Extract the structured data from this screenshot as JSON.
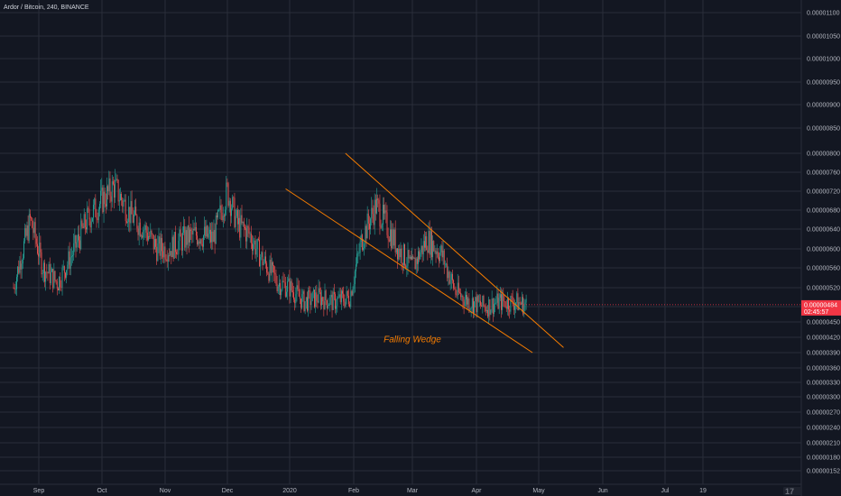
{
  "header": {
    "symbol_title": "Ardor / Bitcoin, 240, BINANCE"
  },
  "chart_data": {
    "type": "candlestick",
    "title": "Ardor / Bitcoin, 240, BINANCE",
    "price_ticks": [
      "0.00001100",
      "0.00001050",
      "0.00001000",
      "0.00000950",
      "0.00000900",
      "0.00000850",
      "0.00000800",
      "0.00000760",
      "0.00000720",
      "0.00000680",
      "0.00000640",
      "0.00000600",
      "0.00000560",
      "0.00000520",
      "0.00000480",
      "0.00000450",
      "0.00000420",
      "0.00000390",
      "0.00000360",
      "0.00000330",
      "0.00000300",
      "0.00000270",
      "0.00000240",
      "0.00000210",
      "0.00000180",
      "0.00000152"
    ],
    "date_ticks": [
      "Sep",
      "Oct",
      "Nov",
      "Dec",
      "2020",
      "Feb",
      "Mar",
      "Apr",
      "May",
      "Jun",
      "Jul",
      "19"
    ],
    "last_price": {
      "price": "0.00000484",
      "countdown": "02:45:57",
      "color": "#f23645"
    },
    "colors": {
      "up": "#26a69a",
      "down": "#ef5350",
      "trendline": "#f57c00",
      "grid": "#2a2e39",
      "background": "#131722"
    },
    "price_path": [
      [
        "2019-08-20",
        5.2e-06
      ],
      [
        "2019-08-28",
        6.6e-06
      ],
      [
        "2019-09-03",
        5.6e-06
      ],
      [
        "2019-09-10",
        5.3e-06
      ],
      [
        "2019-09-17",
        5.9e-06
      ],
      [
        "2019-09-24",
        6.6e-06
      ],
      [
        "2019-10-01",
        7e-06
      ],
      [
        "2019-10-07",
        7.3e-06
      ],
      [
        "2019-10-15",
        6.7e-06
      ],
      [
        "2019-10-22",
        6.4e-06
      ],
      [
        "2019-10-28",
        6e-06
      ],
      [
        "2019-11-03",
        6e-06
      ],
      [
        "2019-11-10",
        6.2e-06
      ],
      [
        "2019-11-17",
        6.3e-06
      ],
      [
        "2019-11-24",
        6.2e-06
      ],
      [
        "2019-12-01",
        7.2e-06
      ],
      [
        "2019-12-06",
        6.5e-06
      ],
      [
        "2019-12-12",
        6.3e-06
      ],
      [
        "2019-12-18",
        5.8e-06
      ],
      [
        "2019-12-26",
        5.3e-06
      ],
      [
        "2020-01-01",
        5.2e-06
      ],
      [
        "2020-01-08",
        4.9e-06
      ],
      [
        "2020-01-15",
        5e-06
      ],
      [
        "2020-01-22",
        4.9e-06
      ],
      [
        "2020-01-30",
        5e-06
      ],
      [
        "2020-02-05",
        6.2e-06
      ],
      [
        "2020-02-12",
        6.9e-06
      ],
      [
        "2020-02-17",
        6.5e-06
      ],
      [
        "2020-02-23",
        6e-06
      ],
      [
        "2020-03-01",
        5.6e-06
      ],
      [
        "2020-03-08",
        6.2e-06
      ],
      [
        "2020-03-15",
        5.9e-06
      ],
      [
        "2020-03-22",
        5.1e-06
      ],
      [
        "2020-03-29",
        4.9e-06
      ],
      [
        "2020-04-05",
        4.8e-06
      ],
      [
        "2020-04-12",
        4.9e-06
      ],
      [
        "2020-04-19",
        4.9e-06
      ],
      [
        "2020-04-25",
        4.84e-06
      ]
    ],
    "trendlines": [
      {
        "name": "upper",
        "start": [
          "2020-01-28",
          8e-06
        ],
        "end": [
          "2020-05-13",
          4e-06
        ]
      },
      {
        "name": "lower",
        "start": [
          "2019-12-30",
          7.25e-06
        ],
        "end": [
          "2020-04-28",
          3.9e-06
        ]
      }
    ],
    "annotations": [
      {
        "text": "Falling Wedge",
        "at": [
          "2020-03-01",
          4.1e-06
        ]
      }
    ]
  }
}
